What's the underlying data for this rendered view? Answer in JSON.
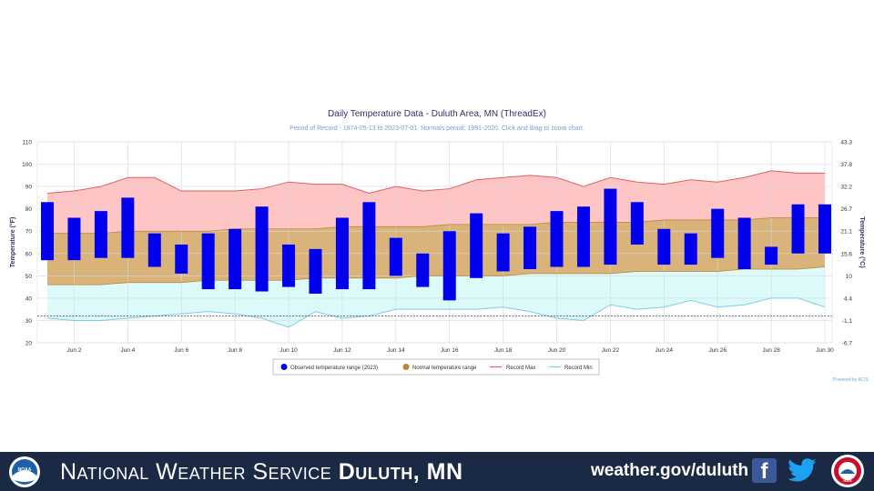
{
  "chart_data": {
    "type": "bar",
    "title": "Daily Temperature Data - Duluth Area, MN (ThreadEx)",
    "subtitle": "Period of Record - 1874-05-13 to 2023-07-01. Normals period: 1991-2020. Click and drag to zoom chart.",
    "ylabel": "Temperature (°F)",
    "y2label": "Temperature (°C)",
    "ylim": [
      20,
      110
    ],
    "yticks": [
      "110",
      "100",
      "90",
      "80",
      "70",
      "60",
      "50",
      "40",
      "30",
      "20"
    ],
    "y2ticks": [
      "43.3",
      "37.8",
      "32.2",
      "26.7",
      "21.1",
      "15.6",
      "10",
      "4.4",
      "-1.1",
      "-6.7"
    ],
    "xticks": [
      "Jun 2",
      "Jun 4",
      "Jun 6",
      "Jun 8",
      "Jun 10",
      "Jun 12",
      "Jun 14",
      "Jun 16",
      "Jun 18",
      "Jun 20",
      "Jun 22",
      "Jun 24",
      "Jun 26",
      "Jun 28",
      "Jun 30"
    ],
    "days": [
      1,
      2,
      3,
      4,
      5,
      6,
      7,
      8,
      9,
      10,
      11,
      12,
      13,
      14,
      15,
      16,
      17,
      18,
      19,
      20,
      21,
      22,
      23,
      24,
      25,
      26,
      27,
      28,
      29,
      30
    ],
    "observed_low": [
      57,
      57,
      58,
      58,
      54,
      51,
      44,
      44,
      43,
      45,
      42,
      44,
      44,
      50,
      45,
      39,
      49,
      52,
      53,
      54,
      54,
      55,
      64,
      55,
      55,
      58,
      53,
      55,
      60,
      60
    ],
    "observed_high": [
      83,
      76,
      79,
      85,
      69,
      64,
      69,
      71,
      81,
      64,
      62,
      76,
      83,
      67,
      60,
      70,
      78,
      69,
      72,
      79,
      81,
      89,
      83,
      71,
      69,
      80,
      76,
      63,
      82,
      82
    ],
    "normal_low": [
      46,
      46,
      46,
      47,
      47,
      47,
      48,
      48,
      48,
      48,
      49,
      49,
      49,
      49,
      50,
      50,
      50,
      50,
      51,
      51,
      51,
      51,
      52,
      52,
      52,
      52,
      53,
      53,
      53,
      54
    ],
    "normal_high": [
      69,
      69,
      69,
      70,
      70,
      70,
      70,
      71,
      71,
      71,
      71,
      72,
      72,
      72,
      72,
      73,
      73,
      73,
      73,
      74,
      74,
      74,
      74,
      75,
      75,
      75,
      75,
      76,
      76,
      76
    ],
    "record_max": [
      87,
      88,
      90,
      94,
      94,
      88,
      88,
      88,
      89,
      92,
      91,
      91,
      87,
      90,
      88,
      89,
      93,
      94,
      95,
      94,
      90,
      94,
      92,
      91,
      93,
      92,
      94,
      97,
      96,
      96
    ],
    "record_min": [
      31,
      30,
      30,
      31,
      32,
      33,
      34,
      33,
      31,
      27,
      34,
      31,
      32,
      35,
      35,
      35,
      35,
      36,
      34,
      31,
      30,
      37,
      35,
      36,
      39,
      36,
      37,
      40,
      40,
      36
    ],
    "normal_mean_line": 32,
    "legend": [
      "Observed temperature range (2023)",
      "Normal temperature range",
      "Record Max",
      "Record Min"
    ],
    "colors": {
      "observed": "#0000ee",
      "normal_fill": "#d9b37a",
      "normal_line": "#b5893a",
      "record_max_fill": "#ffc4c4",
      "record_max_line": "#e06060",
      "record_min_fill": "#dcfafa",
      "record_min_line": "#7ccde6",
      "mean_line": "#3d3d6b"
    },
    "credit": "Powered by ACIS",
    "legend_placement": "bottom"
  },
  "footer": {
    "org_part1": "National Weather Service ",
    "org_part2": "Duluth, MN",
    "url": "weather.gov/duluth",
    "facebook_glyph": "f",
    "noaa_logo_text": "NOAA",
    "nws_logo_text": "NWS"
  }
}
